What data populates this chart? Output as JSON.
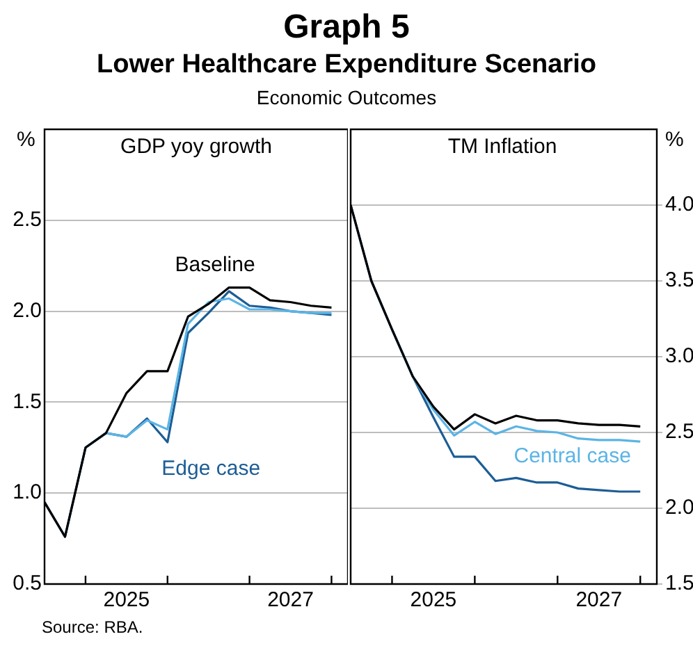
{
  "chart_data": [
    {
      "type": "line",
      "title": "GDP yoy growth",
      "ylabel": "%",
      "annotations": [
        "Graph 5",
        "Lower Healthcare Expenditure Scenario",
        "Economic Outcomes",
        "Source:   RBA."
      ],
      "x": [
        2024.5,
        2024.75,
        2025,
        2025.25,
        2025.5,
        2025.75,
        2026,
        2026.25,
        2026.5,
        2026.75,
        2027,
        2027.25,
        2027.5,
        2027.75,
        2028
      ],
      "series": [
        {
          "name": "Baseline",
          "color": "#000000",
          "values": [
            0.95,
            0.76,
            1.25,
            1.33,
            1.55,
            1.67,
            1.67,
            1.97,
            2.04,
            2.13,
            2.13,
            2.06,
            2.05,
            2.03,
            2.02
          ]
        },
        {
          "color": "#5bb4e5",
          "values": [
            null,
            null,
            1.25,
            1.33,
            1.31,
            1.4,
            1.35,
            1.93,
            2.05,
            2.07,
            2.01,
            2.01,
            2.0,
            1.99,
            1.99
          ]
        },
        {
          "name": "Edge case",
          "color": "#1c5d96",
          "values": [
            0.95,
            0.76,
            1.25,
            1.33,
            1.31,
            1.41,
            1.28,
            1.88,
            1.99,
            2.11,
            2.03,
            2.02,
            2.0,
            1.99,
            1.98
          ]
        }
      ],
      "xlim": [
        2024.5,
        2028.2
      ],
      "xticks": [
        {
          "value": 2025,
          "label": null
        },
        {
          "value": 2025.5,
          "label": "2025"
        },
        {
          "value": 2026,
          "label": null
        },
        {
          "value": 2027,
          "label": null
        },
        {
          "value": 2027.5,
          "label": "2027"
        },
        {
          "value": 2028,
          "label": null
        }
      ],
      "ylim": [
        0.5,
        3.0
      ],
      "yticks": [
        0.5,
        {
          "value": 1,
          "label": "1.0"
        },
        1.5,
        {
          "value": 2,
          "label": "2.0"
        },
        2.5
      ],
      "grid": "y",
      "legend": false,
      "marker": "none",
      "line_style": "solid"
    },
    {
      "type": "line",
      "title": "TM Inflation",
      "ylabel": "%",
      "x": [
        2024.5,
        2024.75,
        2025,
        2025.25,
        2025.5,
        2025.75,
        2026,
        2026.25,
        2026.5,
        2026.75,
        2027,
        2027.25,
        2027.5,
        2027.75,
        2028
      ],
      "series": [
        {
          "color": "#000000",
          "values": [
            4.0,
            3.5,
            3.18,
            2.87,
            2.67,
            2.52,
            2.62,
            2.56,
            2.61,
            2.58,
            2.58,
            2.56,
            2.55,
            2.55,
            2.54
          ]
        },
        {
          "name": "Central case",
          "color": "#5bb4e5",
          "values": [
            null,
            null,
            3.18,
            2.87,
            2.65,
            2.48,
            2.57,
            2.49,
            2.54,
            2.51,
            2.5,
            2.46,
            2.45,
            2.45,
            2.44
          ]
        },
        {
          "color": "#1c5d96",
          "values": [
            4.0,
            3.5,
            3.18,
            2.87,
            2.6,
            2.34,
            2.34,
            2.18,
            2.2,
            2.17,
            2.17,
            2.13,
            2.12,
            2.11,
            2.11
          ]
        }
      ],
      "xlim": [
        2024.5,
        2028.2
      ],
      "xticks": [
        {
          "value": 2025,
          "label": null
        },
        {
          "value": 2025.5,
          "label": "2025"
        },
        {
          "value": 2026,
          "label": null
        },
        {
          "value": 2027,
          "label": null
        },
        {
          "value": 2027.5,
          "label": "2027"
        },
        {
          "value": 2028,
          "label": null
        }
      ],
      "ylim": [
        1.5,
        4.5
      ],
      "yticks": [
        1.5,
        {
          "value": 2,
          "label": "2.0"
        },
        2.5,
        {
          "value": 3,
          "label": "3.0"
        },
        3.5,
        {
          "value": 4,
          "label": "4.0"
        }
      ],
      "grid": "y",
      "legend": false,
      "marker": "none",
      "line_style": "solid"
    }
  ]
}
